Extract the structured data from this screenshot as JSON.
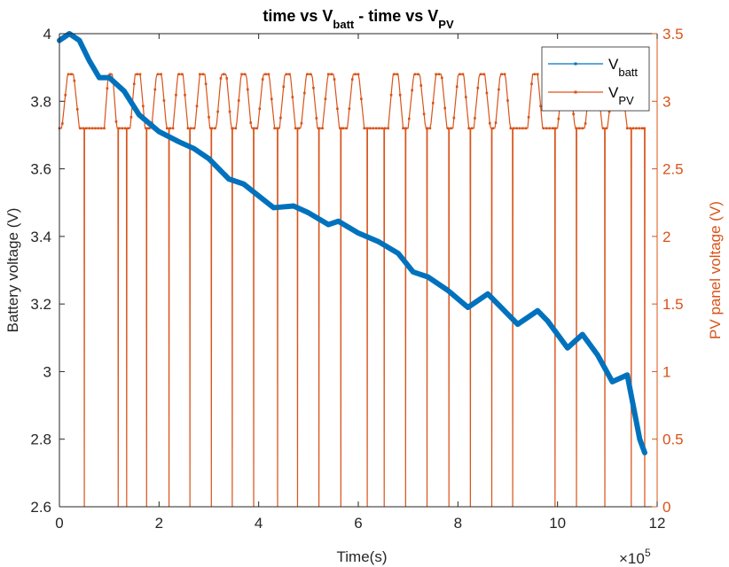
{
  "chart_data": {
    "type": "line",
    "title": {
      "parts": [
        {
          "text": "time vs V",
          "sub": false
        },
        {
          "text": "batt",
          "sub": true
        },
        {
          "text": " - time vs V",
          "sub": false
        },
        {
          "text": "PV",
          "sub": true
        }
      ]
    },
    "xlabel": "Time(s)",
    "x_exponent_label": "×10",
    "x_exponent": "5",
    "x_ticks": [
      0,
      2,
      4,
      6,
      8,
      10,
      12
    ],
    "x_tick_labels": [
      "0",
      "2",
      "4",
      "6",
      "8",
      "10",
      "12"
    ],
    "xlim": [
      0,
      1200000
    ],
    "y_left": {
      "label": "Battery voltage (V)",
      "lim": [
        2.6,
        4.0
      ],
      "ticks": [
        2.6,
        2.8,
        3.0,
        3.2,
        3.4,
        3.6,
        3.8,
        4.0
      ],
      "tick_labels": [
        "2.6",
        "2.8",
        "3",
        "3.2",
        "3.4",
        "3.6",
        "3.8",
        "4"
      ],
      "color": "#000000"
    },
    "y_right": {
      "label": "PV panel voltage (V)",
      "lim": [
        0,
        3.5
      ],
      "ticks": [
        0,
        0.5,
        1.0,
        1.5,
        2.0,
        2.5,
        3.0,
        3.5
      ],
      "tick_labels": [
        "0",
        "0.5",
        "1",
        "1.5",
        "2",
        "2.5",
        "3",
        "3.5"
      ],
      "color": "#D95319"
    },
    "grid": false,
    "legend_position": "top-right",
    "legend": [
      {
        "main": "V",
        "sub": "batt",
        "color": "#0072BD"
      },
      {
        "main": "V",
        "sub": "PV",
        "color": "#D95319"
      }
    ],
    "series": [
      {
        "axis": "left",
        "color": "#0072BD",
        "x": [
          0,
          20000,
          40000,
          60000,
          80000,
          100000,
          130000,
          160000,
          200000,
          240000,
          270000,
          300000,
          340000,
          370000,
          400000,
          430000,
          470000,
          500000,
          540000,
          560000,
          600000,
          640000,
          680000,
          710000,
          740000,
          780000,
          820000,
          860000,
          880000,
          920000,
          960000,
          980000,
          1020000,
          1050000,
          1080000,
          1110000,
          1140000,
          1165000,
          1175000
        ],
        "y": [
          3.98,
          4.0,
          3.98,
          3.92,
          3.87,
          3.87,
          3.83,
          3.76,
          3.71,
          3.68,
          3.66,
          3.63,
          3.57,
          3.555,
          3.52,
          3.485,
          3.49,
          3.47,
          3.435,
          3.445,
          3.41,
          3.385,
          3.35,
          3.295,
          3.28,
          3.24,
          3.19,
          3.23,
          3.2,
          3.14,
          3.18,
          3.15,
          3.07,
          3.11,
          3.05,
          2.97,
          2.99,
          2.8,
          2.76
        ]
      },
      {
        "axis": "right",
        "color": "#D95319",
        "base": 2.8,
        "peak": 3.2,
        "zero_times": [
          50000,
          118000,
          135000,
          175000,
          220000,
          262000,
          305000,
          347000,
          390000,
          438000,
          478000,
          521000,
          565000,
          618000,
          652000,
          695000,
          738000,
          782000,
          825000,
          868000,
          910000,
          995000,
          1038000,
          1095000,
          1148000,
          1175000
        ],
        "humps": [
          [
            5000,
            40000
          ],
          [
            90000,
            115000
          ],
          [
            142000,
            172000
          ],
          [
            185000,
            215000
          ],
          [
            228000,
            258000
          ],
          [
            272000,
            302000
          ],
          [
            315000,
            345000
          ],
          [
            355000,
            385000
          ],
          [
            398000,
            432000
          ],
          [
            442000,
            474000
          ],
          [
            485000,
            518000
          ],
          [
            528000,
            562000
          ],
          [
            578000,
            612000
          ],
          [
            660000,
            690000
          ],
          [
            700000,
            735000
          ],
          [
            745000,
            778000
          ],
          [
            790000,
            822000
          ],
          [
            832000,
            865000
          ],
          [
            875000,
            905000
          ],
          [
            940000,
            970000
          ],
          [
            1000000,
            1035000
          ],
          [
            1055000,
            1090000
          ],
          [
            1100000,
            1140000
          ]
        ]
      }
    ]
  }
}
